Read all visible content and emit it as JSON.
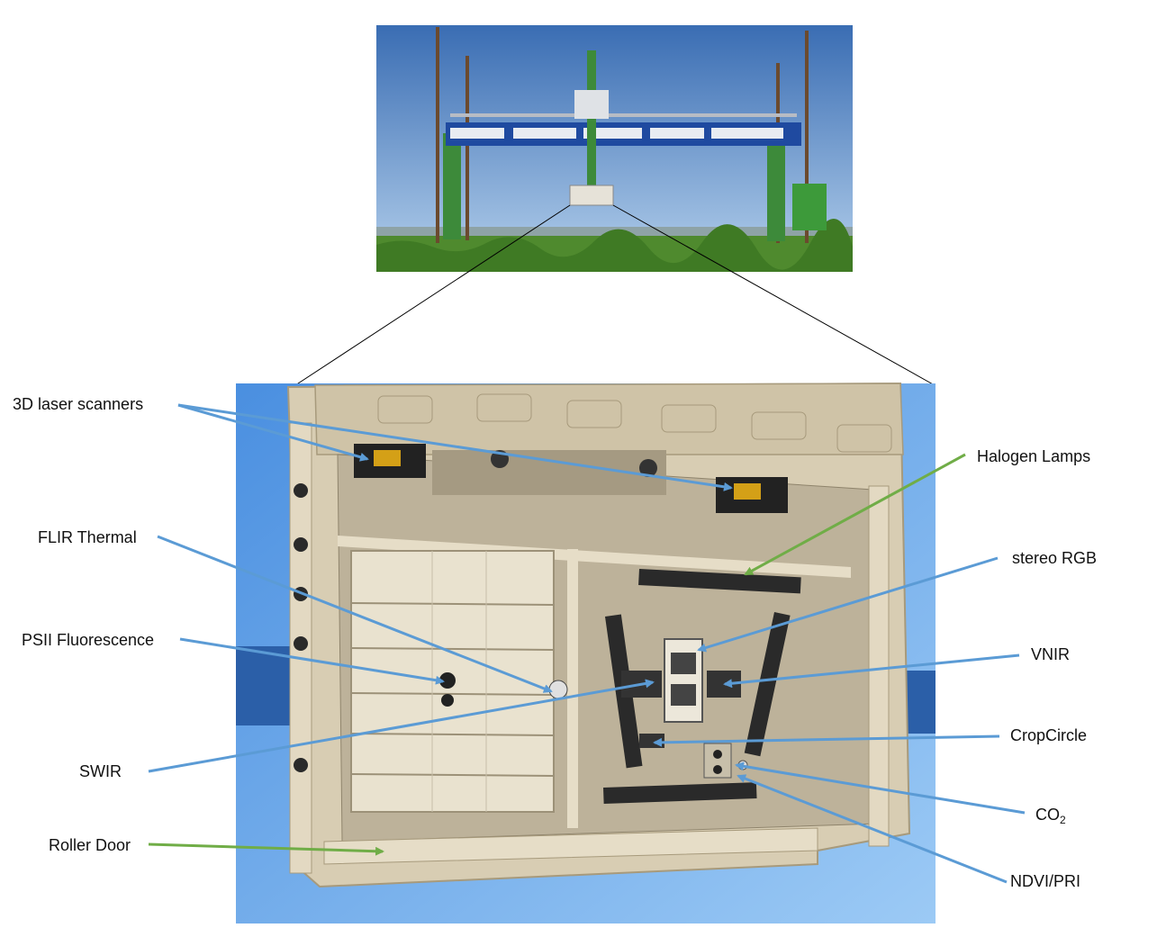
{
  "colors": {
    "sky_top": "#3f74b8",
    "sky_bottom": "#a9c8e8",
    "vegetation": "#4f8a2e",
    "gantry_blue": "#1f4aa0",
    "gantry_green": "#3d8a3a",
    "box_background_blue": "#5aa0ea",
    "enclosure_beige": "#d8cdb3",
    "sensor_dark": "#222222",
    "arrow_blue": "#5b9bd5",
    "arrow_green": "#70ad47",
    "connector_black": "#000000"
  },
  "labels": {
    "laser_scanners": "3D laser scanners",
    "halogen_lamps": "Halogen Lamps",
    "flir_thermal": "FLIR Thermal",
    "stereo_rgb": "stereo RGB",
    "psii": "PSII Fluorescence",
    "vnir": "VNIR",
    "cropcircle": "CropCircle",
    "swir": "SWIR",
    "co2_main": "CO",
    "co2_sub": "2",
    "roller_door": "Roller Door",
    "ndvi_pri": "NDVI/PRI"
  },
  "photo_icons": {
    "top_photo": "field-gantry-photo",
    "bottom_photo": "sensor-box-underside-photo"
  }
}
